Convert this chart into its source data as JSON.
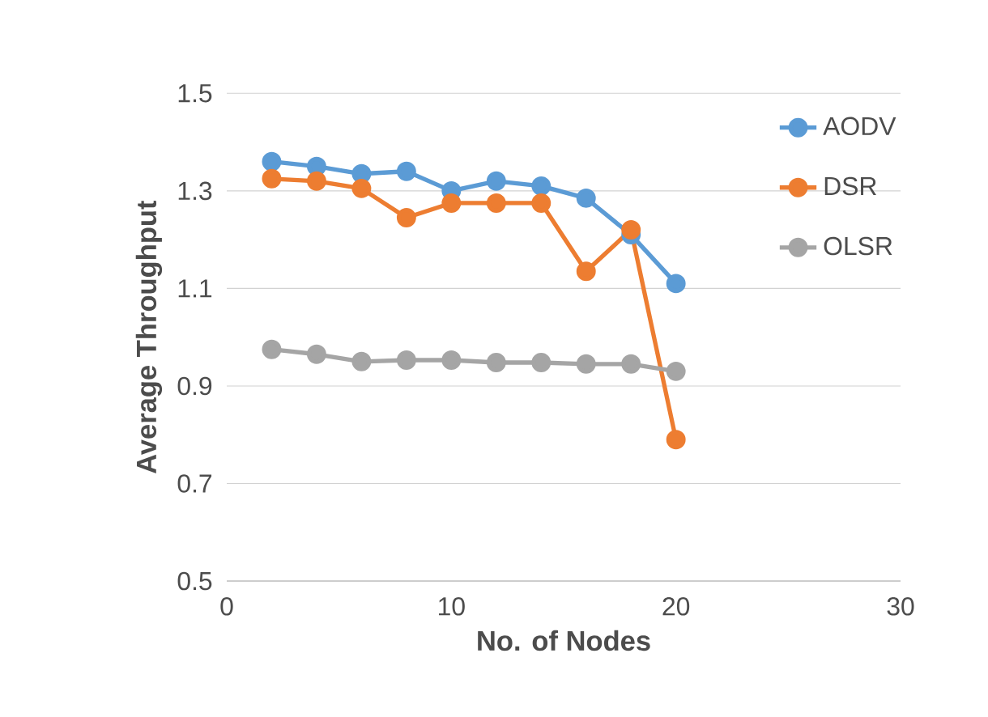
{
  "chart_data": {
    "type": "line",
    "xlabel": "No. of Nodes",
    "ylabel": "Average Throughput",
    "xlim": [
      0,
      30
    ],
    "xticks": [
      0,
      10,
      20,
      30
    ],
    "ylim": [
      0.5,
      1.5
    ],
    "yticks": [
      0.5,
      0.7,
      0.9,
      1.1,
      1.3,
      1.5
    ],
    "grid": "y",
    "legend": "top right",
    "marker": "circle",
    "line_style": "solid",
    "series": [
      {
        "name": "AODV",
        "color": "#5b9bd5",
        "x": [
          2,
          4,
          6,
          8,
          10,
          12,
          14,
          16,
          18,
          20
        ],
        "values": [
          1.36,
          1.35,
          1.335,
          1.34,
          1.3,
          1.32,
          1.31,
          1.285,
          1.21,
          1.11
        ]
      },
      {
        "name": "DSR",
        "color": "#ed7d31",
        "x": [
          2,
          4,
          6,
          8,
          10,
          12,
          14,
          16,
          18,
          20
        ],
        "values": [
          1.325,
          1.32,
          1.305,
          1.245,
          1.275,
          1.275,
          1.275,
          1.135,
          1.22,
          0.79
        ]
      },
      {
        "name": "OLSR",
        "color": "#a5a5a5",
        "x": [
          2,
          4,
          6,
          8,
          10,
          12,
          14,
          16,
          18,
          20
        ],
        "values": [
          0.975,
          0.965,
          0.95,
          0.953,
          0.953,
          0.948,
          0.948,
          0.945,
          0.945,
          0.93
        ]
      }
    ]
  }
}
